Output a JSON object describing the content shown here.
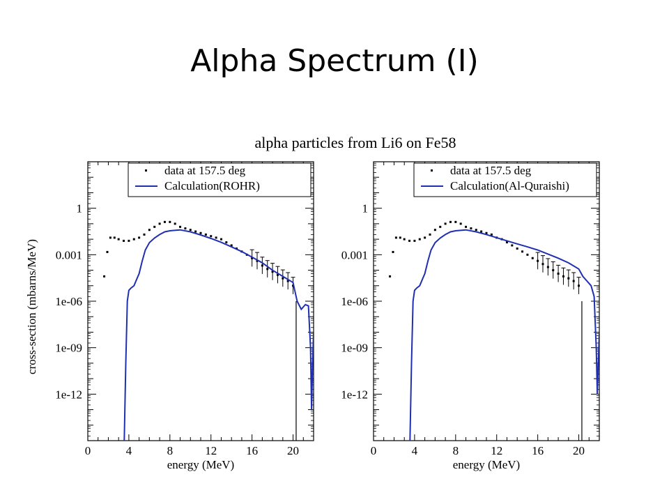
{
  "slide": {
    "title": "Alpha Spectrum (I)"
  },
  "chart_data": [
    {
      "type": "line",
      "title": "alpha particles from Li6 on Fe58",
      "xlabel": "energy (MeV)",
      "ylabel": "cross-section (mbarns/MeV)",
      "xlim": [
        0,
        22
      ],
      "ylim": [
        1e-15,
        1000
      ],
      "yscale": "log",
      "xticks": [
        "0",
        "4",
        "8",
        "12",
        "16",
        "20"
      ],
      "yticks": [
        "1e-12",
        "1e-09",
        "1e-06",
        "0.001",
        "1"
      ],
      "legend_position": "top-right",
      "series": [
        {
          "name": "data at 157.5 deg",
          "style": "points-with-errorbars",
          "color": "#000000",
          "x": [
            1.6,
            1.9,
            2.2,
            2.6,
            3.0,
            3.5,
            4.0,
            4.5,
            5.0,
            5.5,
            6.0,
            6.5,
            7.0,
            7.5,
            8.0,
            8.5,
            9.0,
            9.5,
            10.0,
            10.5,
            11.0,
            11.5,
            12.0,
            12.5,
            13.0,
            13.5,
            14.0,
            14.5,
            15.0,
            15.5,
            16.0,
            16.5,
            17.0,
            17.5,
            18.0,
            18.5,
            19.0,
            19.5,
            20.0
          ],
          "y": [
            4e-05,
            0.0015,
            0.0126,
            0.0126,
            0.01,
            0.0079,
            0.0079,
            0.01,
            0.0126,
            0.02,
            0.04,
            0.063,
            0.1,
            0.13,
            0.13,
            0.1,
            0.063,
            0.05,
            0.04,
            0.0315,
            0.025,
            0.02,
            0.0158,
            0.0126,
            0.01,
            0.0063,
            0.004,
            0.0025,
            0.0016,
            0.001,
            0.0006,
            0.0004,
            0.0002,
            0.00012,
            8e-05,
            5e-05,
            3e-05,
            2e-05,
            1e-05
          ]
        },
        {
          "name": "Calculation(ROHR)",
          "style": "line",
          "color": "#1f2fb0",
          "x": [
            3.55,
            3.7,
            3.85,
            4.0,
            4.2,
            4.5,
            4.8,
            5.0,
            5.3,
            5.6,
            6.0,
            6.5,
            7.0,
            7.5,
            8.0,
            9.0,
            10.0,
            11.0,
            12.0,
            13.0,
            14.0,
            15.0,
            16.0,
            17.0,
            18.0,
            19.0,
            20.0,
            20.4,
            20.8,
            21.2,
            21.5,
            21.7,
            21.8,
            21.9,
            22.0
          ],
          "y": [
            1e-15,
            1e-10,
            1e-06,
            5e-06,
            7e-06,
            1e-05,
            3e-05,
            6e-05,
            0.0004,
            0.002,
            0.006,
            0.012,
            0.02,
            0.03,
            0.035,
            0.04,
            0.03,
            0.0189,
            0.0112,
            0.0063,
            0.0032,
            0.0016,
            0.0007,
            0.0003,
            0.0001,
            4e-05,
            1.6e-05,
            1e-06,
            3e-07,
            6e-07,
            5e-07,
            1e-09,
            1e-13,
            1e-10,
            1e-08
          ]
        }
      ]
    },
    {
      "type": "line",
      "title": "",
      "xlabel": "energy (MeV)",
      "ylabel": "",
      "xlim": [
        0,
        22
      ],
      "ylim": [
        1e-15,
        1000
      ],
      "yscale": "log",
      "xticks": [
        "0",
        "4",
        "8",
        "12",
        "16",
        "20"
      ],
      "yticks": [
        "1e-12",
        "1e-09",
        "1e-06",
        "0.001",
        "1"
      ],
      "legend_position": "top-right",
      "series": [
        {
          "name": "data at 157.5 deg",
          "style": "points-with-errorbars",
          "color": "#000000",
          "x": [
            1.6,
            1.9,
            2.2,
            2.6,
            3.0,
            3.5,
            4.0,
            4.5,
            5.0,
            5.5,
            6.0,
            6.5,
            7.0,
            7.5,
            8.0,
            8.5,
            9.0,
            9.5,
            10.0,
            10.5,
            11.0,
            11.5,
            12.0,
            12.5,
            13.0,
            13.5,
            14.0,
            14.5,
            15.0,
            15.5,
            16.0,
            16.5,
            17.0,
            17.5,
            18.0,
            18.5,
            19.0,
            19.5,
            20.0
          ],
          "y": [
            4e-05,
            0.0015,
            0.0126,
            0.0126,
            0.01,
            0.0079,
            0.0079,
            0.01,
            0.0126,
            0.02,
            0.04,
            0.063,
            0.1,
            0.13,
            0.13,
            0.1,
            0.063,
            0.05,
            0.04,
            0.0315,
            0.025,
            0.02,
            0.0126,
            0.01,
            0.0063,
            0.004,
            0.0025,
            0.0016,
            0.001,
            0.0006,
            0.0004,
            0.00025,
            0.00016,
            0.0001,
            6e-05,
            4e-05,
            3e-05,
            2e-05,
            1e-05
          ]
        },
        {
          "name": "Calculation(Al-Quraishi)",
          "style": "line",
          "color": "#1f2fb0",
          "x": [
            3.55,
            3.7,
            3.85,
            4.0,
            4.2,
            4.5,
            4.8,
            5.0,
            5.3,
            5.6,
            6.0,
            6.5,
            7.0,
            7.5,
            8.0,
            9.0,
            10.0,
            11.0,
            12.0,
            13.0,
            14.0,
            15.0,
            16.0,
            17.0,
            18.0,
            19.0,
            20.0,
            20.4,
            20.8,
            21.2,
            21.5,
            21.7,
            21.8,
            21.9,
            22.0
          ],
          "y": [
            1e-15,
            1e-10,
            1e-06,
            5e-06,
            7e-06,
            1e-05,
            3e-05,
            6e-05,
            0.0004,
            0.002,
            0.006,
            0.012,
            0.02,
            0.03,
            0.035,
            0.04,
            0.03,
            0.02,
            0.0126,
            0.0079,
            0.005,
            0.0032,
            0.002,
            0.0011,
            0.0006,
            0.0003,
            0.00012,
            4e-05,
            2e-05,
            1e-05,
            2e-06,
            1e-09,
            1e-12,
            1e-10,
            1e-08
          ]
        }
      ]
    }
  ]
}
